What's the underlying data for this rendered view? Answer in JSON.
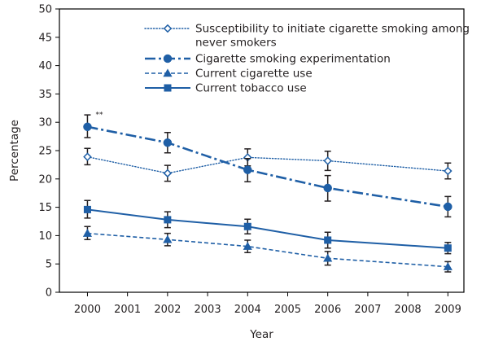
{
  "chart_data": {
    "type": "line",
    "title": "",
    "xlabel": "Year",
    "ylabel": "Percentage",
    "x": [
      2000,
      2002,
      2004,
      2006,
      2009
    ],
    "xticks": [
      "2000",
      "2001",
      "2002",
      "2003",
      "2004",
      "2005",
      "2006",
      "2007",
      "2008",
      "2009"
    ],
    "xlim": [
      1999.3,
      2009.4
    ],
    "ylim": [
      0,
      50
    ],
    "yticks": [
      "0",
      "5",
      "10",
      "15",
      "20",
      "25",
      "30",
      "35",
      "40",
      "45",
      "50"
    ],
    "grid": false,
    "legend_position": "top-right",
    "series": [
      {
        "name": "Susceptibility to initiate cigarette smoking among never smokers",
        "values": [
          23.9,
          21.0,
          23.8,
          23.2,
          21.4
        ],
        "err_low": [
          22.5,
          19.6,
          22.3,
          21.5,
          20.0
        ],
        "err_high": [
          25.4,
          22.4,
          25.3,
          24.9,
          22.8
        ],
        "color": "#1f5fa6",
        "style": "dotted",
        "marker": "diamond-open"
      },
      {
        "name": "Cigarette smoking experimentation",
        "values": [
          29.2,
          26.4,
          21.6,
          18.4,
          15.1
        ],
        "err_low": [
          27.3,
          24.6,
          19.5,
          16.1,
          13.3
        ],
        "err_high": [
          31.3,
          28.2,
          23.6,
          20.6,
          16.9
        ],
        "color": "#1f5fa6",
        "style": "dashdot",
        "marker": "circle"
      },
      {
        "name": "Current cigarette use",
        "values": [
          10.4,
          9.3,
          8.1,
          6.0,
          4.5
        ],
        "err_low": [
          9.3,
          8.2,
          7.0,
          4.8,
          3.6
        ],
        "err_high": [
          11.6,
          10.4,
          9.2,
          7.2,
          5.4
        ],
        "color": "#1f5fa6",
        "style": "dashed",
        "marker": "triangle"
      },
      {
        "name": "Current tobacco use",
        "values": [
          14.6,
          12.8,
          11.6,
          9.2,
          7.8
        ],
        "err_low": [
          13.1,
          11.4,
          10.3,
          7.8,
          6.8
        ],
        "err_high": [
          16.2,
          14.2,
          12.9,
          10.6,
          8.8
        ],
        "color": "#1f5fa6",
        "style": "solid",
        "marker": "square"
      }
    ],
    "annotations": [
      {
        "text": "**",
        "x": 2000,
        "y": 30.7
      }
    ]
  }
}
